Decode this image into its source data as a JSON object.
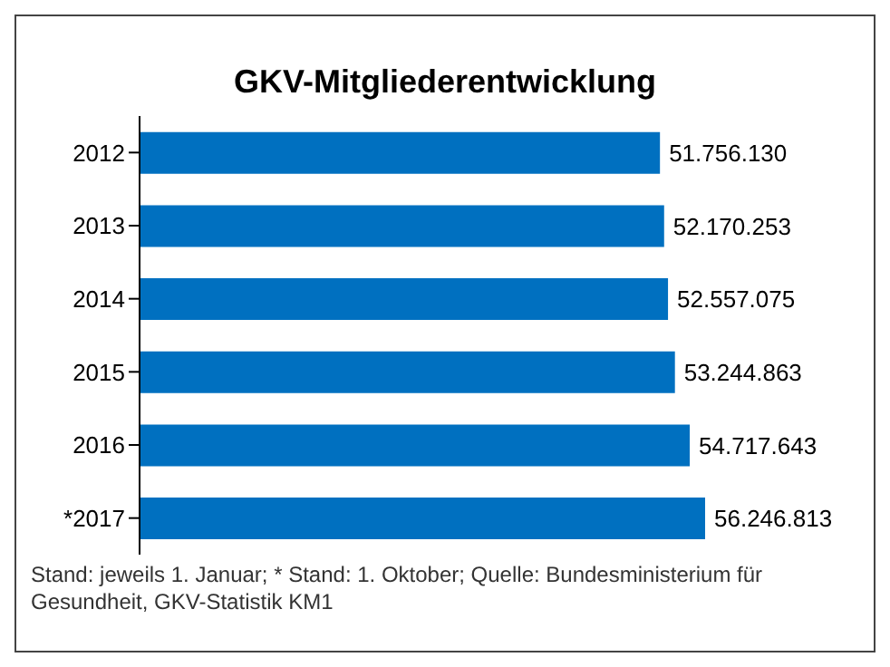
{
  "chart_data": {
    "type": "bar",
    "orientation": "horizontal",
    "title": "GKV-Mitgliederentwicklung",
    "categories": [
      "2012",
      "2013",
      "2014",
      "2015",
      "2016",
      "*2017"
    ],
    "values": [
      51756130,
      52170253,
      52557075,
      53244863,
      54717643,
      56246813
    ],
    "value_labels": [
      "51.756.130",
      "52.170.253",
      "52.557.075",
      "53.244.863",
      "54.717.643",
      "56.246.813"
    ],
    "color": "#0070c0",
    "grid": false,
    "legend": false,
    "annotations": [
      "Stand: jeweils 1. Januar; * Stand: 1. Oktober; Quelle: Bundesministerium für Gesundheit, GKV-Statistik KM1"
    ]
  }
}
